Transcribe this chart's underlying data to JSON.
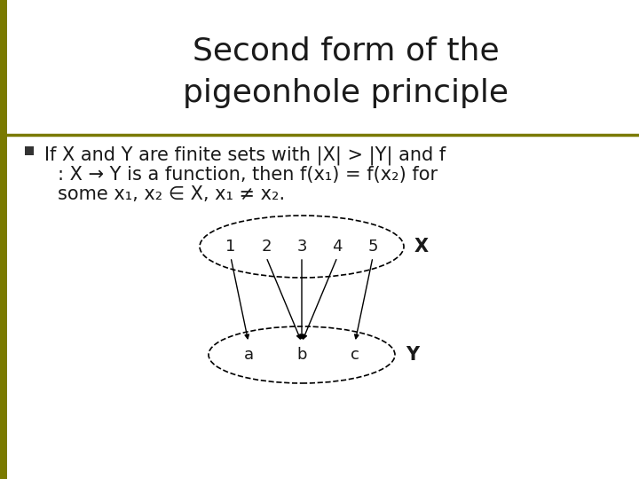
{
  "title_line1": "Second form of the",
  "title_line2": "pigeonhole principle",
  "title_fontsize": 26,
  "title_color": "#1a1a1a",
  "background_color": "#ffffff",
  "left_bar_color": "#7a7a00",
  "separator_color": "#7a7a00",
  "bullet_color": "#333333",
  "text_color": "#1a1a1a",
  "body_fontsize": 15,
  "diagram_fontsize": 13,
  "bullet_text_line1": "If X and Y are finite sets with |X| > |Y| and f",
  "bullet_text_line2": ": X → Y is a function, then f(x₁) = f(x₂) for",
  "bullet_text_line3": "some x₁, x₂ ∈ X, x₁ ≠ x₂.",
  "set_X_elements": [
    "1",
    "2",
    "3",
    "4",
    "5"
  ],
  "set_Y_elements": [
    "a",
    "b",
    "c"
  ],
  "X_label": "X",
  "Y_label": "Y",
  "arrows": [
    [
      0,
      0
    ],
    [
      1,
      1
    ],
    [
      2,
      1
    ],
    [
      3,
      1
    ],
    [
      4,
      2
    ]
  ]
}
